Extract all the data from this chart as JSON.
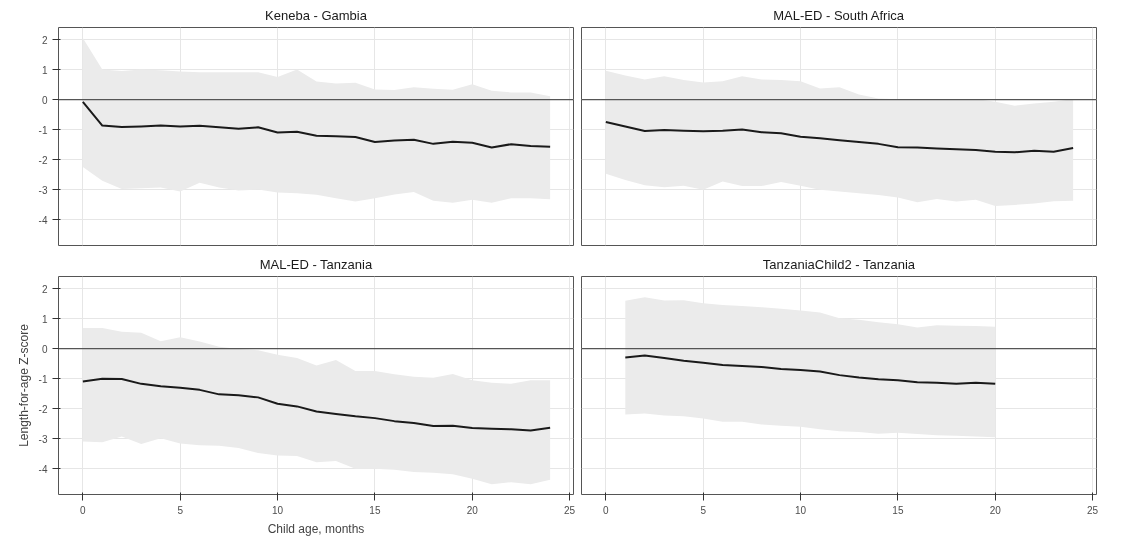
{
  "chart_data": [
    {
      "type": "line",
      "title": "Keneba - Gambia",
      "x": [
        0,
        1,
        2,
        3,
        4,
        5,
        6,
        7,
        8,
        9,
        10,
        11,
        12,
        13,
        14,
        15,
        16,
        17,
        18,
        19,
        20,
        21,
        22,
        23,
        24
      ],
      "series": [
        {
          "color": "#1a1a1a",
          "values": [
            -0.07,
            -0.86,
            -0.91,
            -0.89,
            -0.86,
            -0.89,
            -0.87,
            -0.92,
            -0.97,
            -0.92,
            -1.09,
            -1.07,
            -1.2,
            -1.22,
            -1.24,
            -1.41,
            -1.36,
            -1.33,
            -1.47,
            -1.4,
            -1.43,
            -1.59,
            -1.48,
            -1.54,
            -1.57
          ],
          "upper": [
            2.05,
            1.0,
            0.95,
            1.0,
            0.98,
            0.94,
            0.91,
            0.91,
            0.91,
            0.91,
            0.75,
            1.0,
            0.6,
            0.54,
            0.56,
            0.34,
            0.32,
            0.41,
            0.36,
            0.33,
            0.51,
            0.3,
            0.24,
            0.24,
            0.11
          ],
          "lower": [
            -2.24,
            -2.7,
            -2.97,
            -2.95,
            -2.92,
            -3.05,
            -2.76,
            -2.92,
            -3.02,
            -2.99,
            -3.09,
            -3.11,
            -3.16,
            -3.28,
            -3.39,
            -3.28,
            -3.15,
            -3.07,
            -3.36,
            -3.43,
            -3.33,
            -3.43,
            -3.28,
            -3.28,
            -3.31
          ]
        }
      ],
      "xlim": [
        -1.25,
        25.2
      ],
      "ylim": [
        -4.85,
        2.4
      ],
      "xticks": [
        0,
        5,
        10,
        15,
        20,
        25
      ],
      "yticks": [
        -4,
        -3,
        -2,
        -1,
        0,
        1,
        2
      ],
      "grid": true,
      "tick_labels": "y",
      "ref_lines": [
        {
          "axis": "y",
          "value": 0
        }
      ]
    },
    {
      "type": "line",
      "title": "MAL-ED - South Africa",
      "x": [
        0,
        1,
        2,
        3,
        4,
        5,
        6,
        7,
        8,
        9,
        10,
        11,
        12,
        13,
        14,
        15,
        16,
        17,
        18,
        19,
        20,
        21,
        22,
        23,
        24
      ],
      "series": [
        {
          "color": "#1a1a1a",
          "values": [
            -0.74,
            -0.89,
            -1.04,
            -1.01,
            -1.03,
            -1.05,
            -1.03,
            -0.99,
            -1.08,
            -1.12,
            -1.23,
            -1.28,
            -1.35,
            -1.41,
            -1.47,
            -1.58,
            -1.59,
            -1.62,
            -1.65,
            -1.67,
            -1.73,
            -1.75,
            -1.7,
            -1.73,
            -1.61
          ],
          "upper": [
            0.96,
            0.8,
            0.67,
            0.78,
            0.65,
            0.57,
            0.61,
            0.78,
            0.67,
            0.65,
            0.61,
            0.37,
            0.41,
            0.17,
            0.04,
            0.01,
            0,
            0.01,
            0.01,
            0.02,
            -0.07,
            -0.2,
            -0.13,
            -0.07,
            0.02
          ],
          "lower": [
            -2.46,
            -2.67,
            -2.85,
            -2.91,
            -2.86,
            -3.0,
            -2.72,
            -2.87,
            -2.87,
            -2.74,
            -2.86,
            -3.0,
            -3.05,
            -3.11,
            -3.17,
            -3.25,
            -3.41,
            -3.3,
            -3.39,
            -3.33,
            -3.54,
            -3.5,
            -3.45,
            -3.38,
            -3.36
          ]
        }
      ],
      "xlim": [
        -1.25,
        25.2
      ],
      "ylim": [
        -4.85,
        2.4
      ],
      "xticks": [
        0,
        5,
        10,
        15,
        20,
        25
      ],
      "yticks": [
        -4,
        -3,
        -2,
        -1,
        0,
        1,
        2
      ],
      "grid": true,
      "tick_labels": false,
      "ref_lines": [
        {
          "axis": "y",
          "value": 0
        }
      ]
    },
    {
      "type": "line",
      "title": "MAL-ED - Tanzania",
      "xlabel": "Child age, months",
      "ylabel": "Length-for-age Z-score",
      "x": [
        0,
        1,
        2,
        3,
        4,
        5,
        6,
        7,
        8,
        9,
        10,
        11,
        12,
        13,
        14,
        15,
        16,
        17,
        18,
        19,
        20,
        21,
        22,
        23,
        24
      ],
      "series": [
        {
          "color": "#1a1a1a",
          "values": [
            -1.09,
            -1.0,
            -1.01,
            -1.17,
            -1.25,
            -1.3,
            -1.37,
            -1.52,
            -1.55,
            -1.62,
            -1.83,
            -1.92,
            -2.09,
            -2.17,
            -2.25,
            -2.31,
            -2.41,
            -2.47,
            -2.57,
            -2.56,
            -2.64,
            -2.66,
            -2.68,
            -2.72,
            -2.63
          ],
          "upper": [
            0.69,
            0.69,
            0.56,
            0.53,
            0.25,
            0.38,
            0.24,
            0.06,
            -0.01,
            -0.05,
            -0.2,
            -0.31,
            -0.56,
            -0.38,
            -0.74,
            -0.74,
            -0.85,
            -0.93,
            -0.97,
            -0.84,
            -1.05,
            -1.13,
            -1.17,
            -1.05,
            -1.05
          ],
          "lower": [
            -3.09,
            -3.11,
            -2.92,
            -3.17,
            -2.98,
            -3.15,
            -3.21,
            -3.23,
            -3.3,
            -3.47,
            -3.55,
            -3.57,
            -3.78,
            -3.74,
            -3.99,
            -3.99,
            -4.03,
            -4.1,
            -4.13,
            -4.18,
            -4.33,
            -4.51,
            -4.44,
            -4.51,
            -4.36
          ]
        }
      ],
      "xlim": [
        -1.25,
        25.2
      ],
      "ylim": [
        -4.85,
        2.4
      ],
      "xticks": [
        0,
        5,
        10,
        15,
        20,
        25
      ],
      "yticks": [
        -4,
        -3,
        -2,
        -1,
        0,
        1,
        2
      ],
      "grid": true,
      "ref_lines": [
        {
          "axis": "y",
          "value": 0
        }
      ]
    },
    {
      "type": "line",
      "title": "TanzaniaChild2 - Tanzania",
      "x": [
        1,
        2,
        3,
        4,
        5,
        6,
        7,
        8,
        9,
        10,
        11,
        12,
        13,
        14,
        15,
        16,
        17,
        18,
        19,
        20
      ],
      "series": [
        {
          "color": "#1a1a1a",
          "values": [
            -0.29,
            -0.23,
            -0.31,
            -0.4,
            -0.47,
            -0.54,
            -0.58,
            -0.61,
            -0.68,
            -0.71,
            -0.76,
            -0.88,
            -0.96,
            -1.02,
            -1.05,
            -1.12,
            -1.13,
            -1.17,
            -1.13,
            -1.17
          ],
          "upper": [
            1.59,
            1.71,
            1.6,
            1.61,
            1.51,
            1.45,
            1.42,
            1.38,
            1.33,
            1.27,
            1.2,
            1.01,
            0.96,
            0.88,
            0.81,
            0.7,
            0.78,
            0.76,
            0.75,
            0.73
          ],
          "lower": [
            -2.19,
            -2.16,
            -2.22,
            -2.25,
            -2.32,
            -2.43,
            -2.43,
            -2.52,
            -2.56,
            -2.6,
            -2.68,
            -2.75,
            -2.77,
            -2.83,
            -2.8,
            -2.84,
            -2.88,
            -2.9,
            -2.92,
            -2.95
          ]
        }
      ],
      "xlim": [
        -1.25,
        25.2
      ],
      "ylim": [
        -4.85,
        2.4
      ],
      "xticks": [
        0,
        5,
        10,
        15,
        20,
        25
      ],
      "yticks": [
        -4,
        -3,
        -2,
        -1,
        0,
        1,
        2
      ],
      "grid": true,
      "tick_labels": "x",
      "ref_lines": [
        {
          "axis": "y",
          "value": 0
        }
      ]
    }
  ]
}
